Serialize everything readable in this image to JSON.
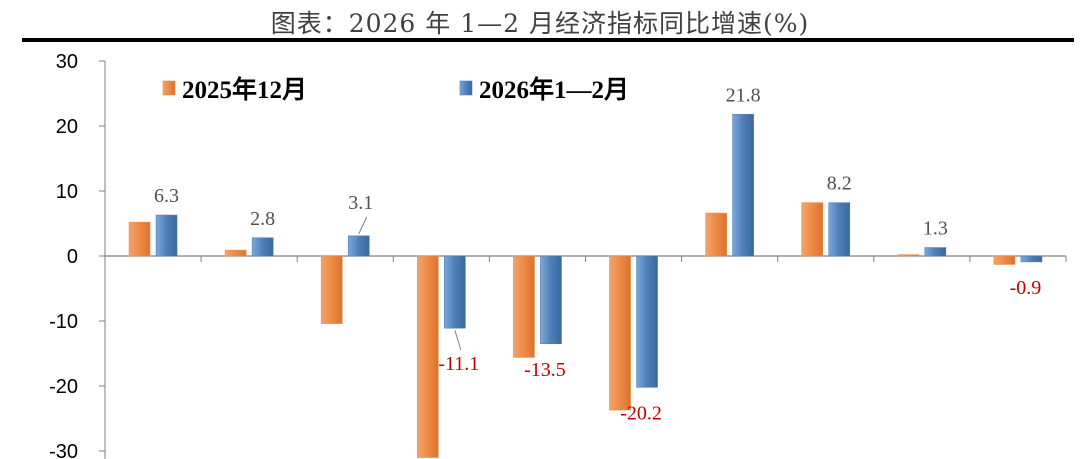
{
  "title": "图表：2026 年 1—2 月经济指标同比增速(%)",
  "colors": {
    "series_1": "#ED8A45",
    "series_2": "#4F7FB8",
    "negative_label": "#C00000",
    "positive_label": "#505050"
  },
  "chart_data": {
    "type": "bar",
    "ylim": [
      -30,
      30
    ],
    "yticks": [
      30,
      20,
      10,
      0,
      -10,
      -20,
      -30
    ],
    "grid": false,
    "legend_position": "top-left",
    "categories": [
      "",
      "",
      "",
      "",
      "",
      "",
      "",
      "",
      "",
      ""
    ],
    "series": [
      {
        "name": "2025年12月",
        "values": [
          5.2,
          0.9,
          -10.4,
          -31.0,
          -15.6,
          -23.7,
          6.6,
          8.2,
          0.2,
          -1.3
        ]
      },
      {
        "name": "2026年1—2月",
        "values": [
          6.3,
          2.8,
          3.1,
          -11.1,
          -13.5,
          -20.2,
          21.8,
          8.2,
          1.3,
          -0.9
        ]
      }
    ],
    "data_labels": [
      "6.3",
      "2.8",
      "3.1",
      "-11.1",
      "-13.5",
      "-20.2",
      "21.8",
      "8.2",
      "1.3",
      "-0.9"
    ]
  }
}
